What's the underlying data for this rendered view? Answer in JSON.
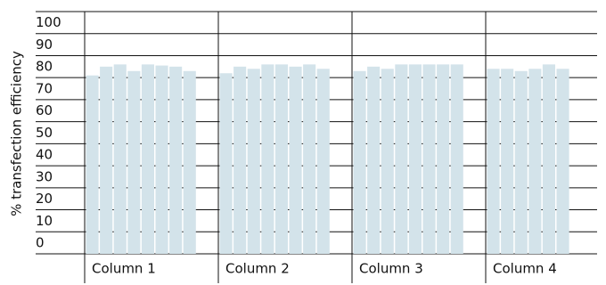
{
  "chart_data": {
    "type": "bar",
    "y_label": "% transfection efficiency",
    "categories": [
      "Column 1",
      "Column 2",
      "Column 3",
      "Column 4"
    ],
    "values": [
      [
        81,
        85,
        86,
        83,
        86,
        85.5,
        85,
        83
      ],
      [
        82,
        85,
        84,
        86,
        86,
        85,
        86,
        84
      ],
      [
        83,
        85,
        84,
        86,
        86,
        86,
        86,
        86
      ],
      [
        84,
        84,
        83,
        84,
        86,
        84
      ]
    ],
    "color": "#d3e3ea",
    "ylim": [
      0,
      110
    ],
    "yticks": [
      0,
      10,
      20,
      30,
      40,
      50,
      60,
      70,
      80,
      90,
      100
    ],
    "grid": true
  }
}
